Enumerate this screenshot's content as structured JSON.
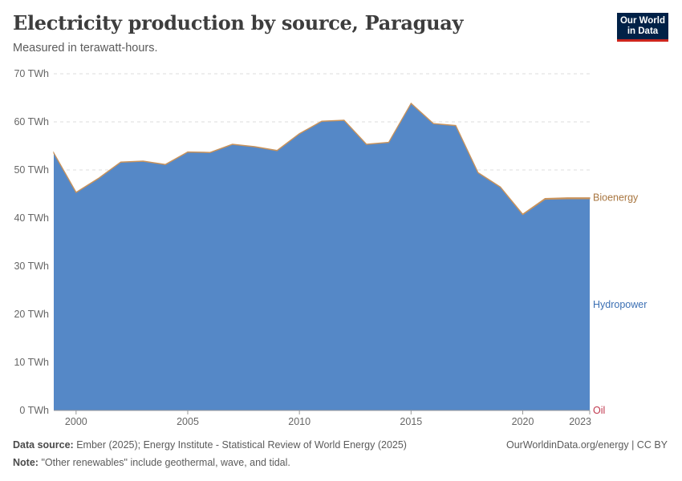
{
  "header": {
    "title": "Electricity production by source, Paraguay",
    "subtitle": "Measured in terawatt-hours.",
    "logo_line1": "Our World",
    "logo_line2": "in Data"
  },
  "footer": {
    "source_label": "Data source:",
    "source_text": "Ember (2025); Energy Institute - Statistical Review of World Energy (2025)",
    "note_label": "Note:",
    "note_text": "\"Other renewables\" include geothermal, wave, and tidal.",
    "attribution": "OurWorldinData.org/energy | CC BY"
  },
  "colors": {
    "hydropower": "#5588c7",
    "bioenergy": "#c9935b",
    "oil": "#c8465c",
    "hydropower_label": "#3b6fb3",
    "bioenergy_label": "#a87640",
    "oil_label": "#c0374d",
    "grid": "#dddddd"
  },
  "chart_data": {
    "type": "area",
    "stacked": true,
    "x": [
      1999,
      2000,
      2001,
      2002,
      2003,
      2004,
      2005,
      2006,
      2007,
      2008,
      2009,
      2010,
      2011,
      2012,
      2013,
      2014,
      2015,
      2016,
      2017,
      2018,
      2019,
      2020,
      2021,
      2022,
      2023
    ],
    "series": [
      {
        "name": "Oil",
        "values": [
          0.01,
          0.01,
          0.01,
          0.01,
          0.01,
          0.01,
          0.01,
          0.01,
          0.01,
          0.01,
          0.01,
          0.01,
          0.01,
          0.01,
          0.01,
          0.01,
          0.01,
          0.01,
          0.01,
          0.01,
          0.01,
          0.01,
          0.01,
          0.01,
          0.01
        ]
      },
      {
        "name": "Hydropower",
        "values": [
          53.5,
          45.3,
          48.2,
          51.6,
          51.8,
          51.1,
          53.7,
          53.6,
          55.3,
          54.8,
          54.0,
          57.5,
          60.1,
          60.3,
          55.3,
          55.7,
          63.8,
          59.6,
          59.2,
          49.4,
          46.4,
          40.7,
          43.9,
          44.0,
          44.0
        ]
      },
      {
        "name": "Bioenergy",
        "values": [
          0.05,
          0.05,
          0.05,
          0.05,
          0.05,
          0.05,
          0.05,
          0.05,
          0.05,
          0.05,
          0.05,
          0.05,
          0.05,
          0.05,
          0.05,
          0.05,
          0.05,
          0.05,
          0.05,
          0.05,
          0.05,
          0.1,
          0.15,
          0.2,
          0.2
        ]
      }
    ],
    "ylim": [
      0,
      70
    ],
    "yticks": [
      0,
      10,
      20,
      30,
      40,
      50,
      60,
      70
    ],
    "ytick_labels": [
      "0 TWh",
      "10 TWh",
      "20 TWh",
      "30 TWh",
      "40 TWh",
      "50 TWh",
      "60 TWh",
      "70 TWh"
    ],
    "xticks": [
      2000,
      2005,
      2010,
      2015,
      2020,
      2023
    ],
    "xtick_labels": [
      "2000",
      "2005",
      "2010",
      "2015",
      "2020",
      "2023"
    ],
    "legend_position": "right",
    "grid": "horizontal-dashed"
  }
}
